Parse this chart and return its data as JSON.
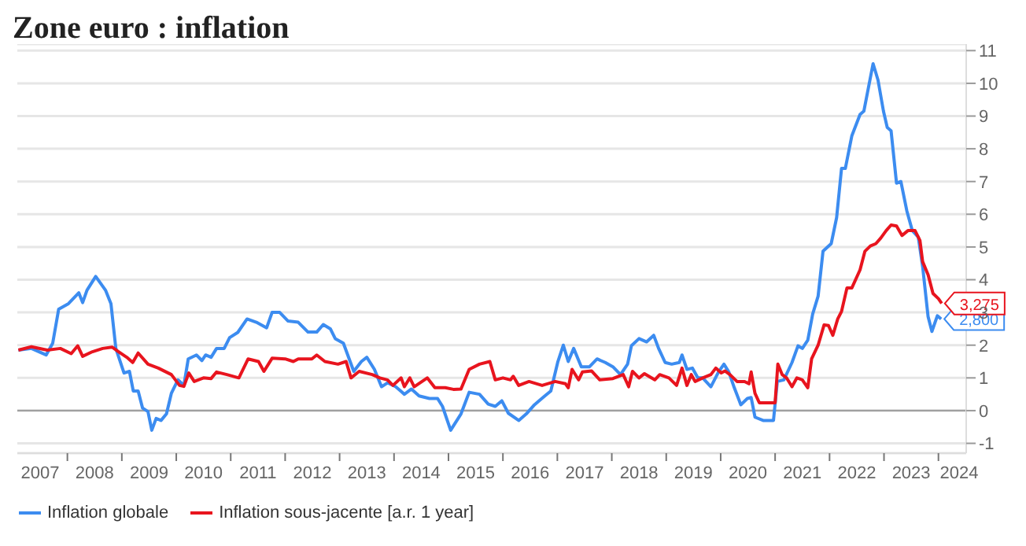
{
  "chart_data": {
    "type": "line",
    "title": "Zone euro : inflation",
    "xlim": [
      2007.08,
      2024.51
    ],
    "xticks": [
      {
        "value": 2007.5,
        "label": "2007"
      },
      {
        "value": 2008,
        "label": null
      },
      {
        "value": 2008.5,
        "label": "2008"
      },
      {
        "value": 2009,
        "label": null
      },
      {
        "value": 2009.5,
        "label": "2009"
      },
      {
        "value": 2010,
        "label": null
      },
      {
        "value": 2010.5,
        "label": "2010"
      },
      {
        "value": 2011,
        "label": null
      },
      {
        "value": 2011.5,
        "label": "2011"
      },
      {
        "value": 2012,
        "label": null
      },
      {
        "value": 2012.5,
        "label": "2012"
      },
      {
        "value": 2013,
        "label": null
      },
      {
        "value": 2013.5,
        "label": "2013"
      },
      {
        "value": 2014,
        "label": null
      },
      {
        "value": 2014.5,
        "label": "2014"
      },
      {
        "value": 2015,
        "label": null
      },
      {
        "value": 2015.5,
        "label": "2015"
      },
      {
        "value": 2016,
        "label": null
      },
      {
        "value": 2016.5,
        "label": "2016"
      },
      {
        "value": 2017,
        "label": null
      },
      {
        "value": 2017.5,
        "label": "2017"
      },
      {
        "value": 2018,
        "label": null
      },
      {
        "value": 2018.5,
        "label": "2018"
      },
      {
        "value": 2019,
        "label": null
      },
      {
        "value": 2019.5,
        "label": "2019"
      },
      {
        "value": 2020,
        "label": null
      },
      {
        "value": 2020.5,
        "label": "2020"
      },
      {
        "value": 2021,
        "label": null
      },
      {
        "value": 2021.5,
        "label": "2021"
      },
      {
        "value": 2022,
        "label": null
      },
      {
        "value": 2022.5,
        "label": "2022"
      },
      {
        "value": 2023,
        "label": null
      },
      {
        "value": 2023.5,
        "label": "2023"
      },
      {
        "value": 2024,
        "label": null
      },
      {
        "value": 2024.38,
        "label": "2024"
      }
    ],
    "ylim": [
      -1.3,
      11.2
    ],
    "yticks": [
      -1,
      0,
      1,
      2,
      3,
      4,
      5,
      6,
      7,
      8,
      9,
      10,
      11
    ],
    "grid": "y",
    "legend": "bottom left",
    "marker": "none",
    "line_style": "solid",
    "ref_lines": [
      {
        "axis": "y",
        "value": 0,
        "color": "#a0a0a0"
      }
    ],
    "annotations": [
      {
        "text": "2,800",
        "x": 2024.05,
        "y": 2.8
      },
      {
        "text": "3,275",
        "x": 2024.06,
        "y": 3.275
      }
    ],
    "series": [
      {
        "name": "Inflation globale",
        "color": "#3c8cf0",
        "x": [
          2007.1,
          2007.34,
          2007.61,
          2007.73,
          2007.84,
          2008.02,
          2008.21,
          2008.28,
          2008.36,
          2008.52,
          2008.7,
          2008.8,
          2008.89,
          2009.04,
          2009.14,
          2009.21,
          2009.3,
          2009.38,
          2009.48,
          2009.55,
          2009.63,
          2009.72,
          2009.82,
          2009.91,
          2010.03,
          2010.14,
          2010.22,
          2010.37,
          2010.47,
          2010.54,
          2010.64,
          2010.74,
          2010.88,
          2010.98,
          2011.13,
          2011.3,
          2011.47,
          2011.66,
          2011.76,
          2011.9,
          2012.05,
          2012.24,
          2012.42,
          2012.58,
          2012.7,
          2012.83,
          2012.92,
          2013.07,
          2013.26,
          2013.4,
          2013.5,
          2013.64,
          2013.77,
          2013.88,
          2014.03,
          2014.19,
          2014.32,
          2014.46,
          2014.65,
          2014.8,
          2014.89,
          2015.04,
          2015.23,
          2015.38,
          2015.57,
          2015.73,
          2015.86,
          2015.98,
          2016.1,
          2016.29,
          2016.43,
          2016.58,
          2016.77,
          2016.88,
          2017.01,
          2017.11,
          2017.2,
          2017.3,
          2017.44,
          2017.59,
          2017.73,
          2017.88,
          2018.02,
          2018.16,
          2018.29,
          2018.36,
          2018.5,
          2018.64,
          2018.77,
          2018.86,
          2018.98,
          2019.1,
          2019.24,
          2019.29,
          2019.38,
          2019.48,
          2019.58,
          2019.67,
          2019.82,
          2019.96,
          2020.06,
          2020.15,
          2020.25,
          2020.37,
          2020.49,
          2020.56,
          2020.63,
          2020.78,
          2020.97,
          2021.04,
          2021.16,
          2021.31,
          2021.42,
          2021.5,
          2021.6,
          2021.69,
          2021.79,
          2021.88,
          2022.03,
          2022.13,
          2022.22,
          2022.29,
          2022.41,
          2022.56,
          2022.63,
          2022.8,
          2022.89,
          2022.99,
          2023.06,
          2023.13,
          2023.23,
          2023.31,
          2023.42,
          2023.52,
          2023.63,
          2023.71,
          2023.81,
          2023.88,
          2023.98,
          2024.05
        ],
        "values": [
          1.85,
          1.9,
          1.7,
          2.06,
          3.1,
          3.27,
          3.6,
          3.3,
          3.68,
          4.1,
          3.68,
          3.27,
          1.9,
          1.15,
          1.2,
          0.6,
          0.6,
          0.08,
          -0.03,
          -0.6,
          -0.24,
          -0.3,
          -0.1,
          0.53,
          0.94,
          0.77,
          1.58,
          1.7,
          1.53,
          1.7,
          1.63,
          1.9,
          1.9,
          2.23,
          2.39,
          2.8,
          2.7,
          2.53,
          3.0,
          3.0,
          2.74,
          2.7,
          2.4,
          2.4,
          2.63,
          2.5,
          2.2,
          2.06,
          1.2,
          1.5,
          1.63,
          1.26,
          0.73,
          0.85,
          0.73,
          0.5,
          0.66,
          0.45,
          0.37,
          0.37,
          0.13,
          -0.6,
          -0.1,
          0.56,
          0.5,
          0.2,
          0.13,
          0.3,
          -0.08,
          -0.3,
          -0.1,
          0.18,
          0.45,
          0.6,
          1.5,
          2.0,
          1.5,
          1.9,
          1.34,
          1.34,
          1.58,
          1.47,
          1.34,
          1.1,
          1.42,
          1.98,
          2.2,
          2.1,
          2.3,
          1.9,
          1.47,
          1.42,
          1.47,
          1.7,
          1.26,
          1.3,
          1.0,
          1.0,
          0.73,
          1.18,
          1.42,
          1.18,
          0.7,
          0.18,
          0.37,
          0.4,
          -0.2,
          -0.3,
          -0.3,
          0.89,
          0.94,
          1.47,
          1.98,
          1.9,
          2.15,
          2.95,
          3.5,
          4.87,
          5.1,
          5.9,
          7.4,
          7.4,
          8.4,
          9.05,
          9.15,
          10.6,
          10.1,
          9.15,
          8.65,
          8.55,
          6.95,
          7.0,
          6.1,
          5.5,
          5.3,
          4.4,
          2.87,
          2.42,
          2.9,
          2.8
        ]
      },
      {
        "name": "Inflation sous-jacente [a.r. 1 year]",
        "color": "#e8141e",
        "x": [
          2007.1,
          2007.34,
          2007.63,
          2007.87,
          2008.07,
          2008.19,
          2008.28,
          2008.46,
          2008.65,
          2008.82,
          2008.94,
          2009.09,
          2009.2,
          2009.3,
          2009.48,
          2009.67,
          2009.91,
          2010.06,
          2010.14,
          2010.23,
          2010.33,
          2010.5,
          2010.64,
          2010.74,
          2010.93,
          2011.15,
          2011.32,
          2011.51,
          2011.61,
          2011.76,
          2012.0,
          2012.15,
          2012.24,
          2012.49,
          2012.58,
          2012.73,
          2012.97,
          2013.12,
          2013.21,
          2013.36,
          2013.6,
          2013.74,
          2013.88,
          2013.98,
          2014.13,
          2014.19,
          2014.29,
          2014.37,
          2014.61,
          2014.75,
          2014.94,
          2015.09,
          2015.23,
          2015.38,
          2015.57,
          2015.76,
          2015.86,
          2016.0,
          2016.14,
          2016.19,
          2016.29,
          2016.48,
          2016.72,
          2016.96,
          2017.15,
          2017.2,
          2017.27,
          2017.39,
          2017.46,
          2017.63,
          2017.78,
          2018.02,
          2018.21,
          2018.31,
          2018.38,
          2018.5,
          2018.6,
          2018.79,
          2018.88,
          2019.05,
          2019.19,
          2019.29,
          2019.38,
          2019.46,
          2019.53,
          2019.67,
          2019.82,
          2019.91,
          2020.01,
          2020.08,
          2020.17,
          2020.3,
          2020.44,
          2020.52,
          2020.56,
          2020.63,
          2020.71,
          2021.0,
          2021.05,
          2021.13,
          2021.21,
          2021.31,
          2021.4,
          2021.5,
          2021.6,
          2021.67,
          2021.79,
          2021.9,
          2021.98,
          2022.06,
          2022.15,
          2022.22,
          2022.32,
          2022.41,
          2022.56,
          2022.65,
          2022.75,
          2022.85,
          2022.94,
          2023.04,
          2023.13,
          2023.23,
          2023.33,
          2023.44,
          2023.57,
          2023.66,
          2023.71,
          2023.81,
          2023.9,
          2024.0,
          2024.06
        ],
        "values": [
          1.85,
          1.95,
          1.85,
          1.9,
          1.74,
          1.98,
          1.66,
          1.8,
          1.9,
          1.94,
          1.8,
          1.63,
          1.47,
          1.76,
          1.42,
          1.3,
          1.1,
          0.77,
          0.74,
          1.15,
          0.89,
          1.0,
          0.98,
          1.18,
          1.1,
          1.0,
          1.58,
          1.5,
          1.2,
          1.6,
          1.58,
          1.5,
          1.58,
          1.58,
          1.7,
          1.5,
          1.42,
          1.5,
          1.0,
          1.2,
          1.1,
          1.0,
          0.94,
          0.77,
          1.0,
          0.73,
          1.0,
          0.73,
          1.0,
          0.7,
          0.7,
          0.65,
          0.66,
          1.26,
          1.42,
          1.5,
          0.94,
          1.0,
          0.94,
          1.05,
          0.77,
          0.89,
          0.77,
          0.89,
          0.82,
          0.7,
          1.26,
          0.94,
          1.18,
          1.21,
          0.94,
          0.98,
          1.1,
          0.73,
          1.2,
          1.0,
          1.13,
          0.94,
          1.1,
          1.0,
          0.77,
          1.3,
          0.77,
          1.1,
          0.89,
          1.0,
          1.1,
          1.3,
          1.15,
          1.21,
          1.1,
          0.89,
          0.89,
          0.82,
          1.18,
          0.53,
          0.24,
          0.24,
          1.42,
          1.1,
          1.0,
          0.73,
          1.0,
          0.94,
          0.7,
          1.58,
          2.0,
          2.62,
          2.6,
          2.3,
          2.8,
          3.03,
          3.75,
          3.75,
          4.3,
          4.87,
          5.03,
          5.1,
          5.27,
          5.5,
          5.67,
          5.64,
          5.35,
          5.5,
          5.5,
          5.2,
          4.55,
          4.15,
          3.58,
          3.42,
          3.275
        ]
      }
    ]
  }
}
